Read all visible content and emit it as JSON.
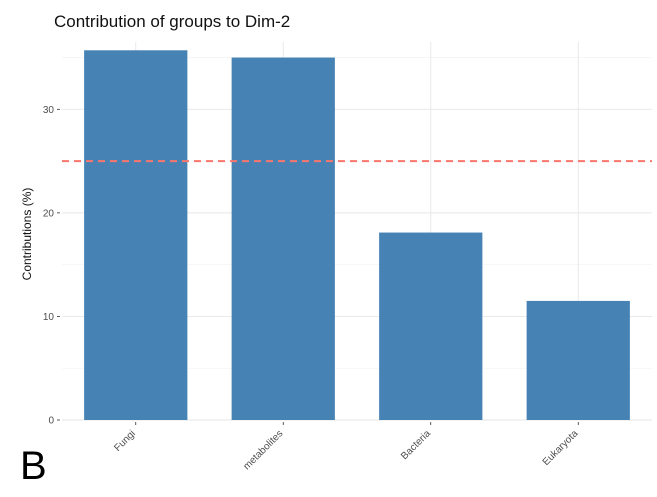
{
  "panel_label": "B",
  "chart_data": {
    "type": "bar",
    "title": "Contribution of groups to Dim-2",
    "xlabel": "",
    "ylabel": "Contributions (%)",
    "categories": [
      "Fungi",
      "metabolites",
      "Bacteria",
      "Eukaryota"
    ],
    "values": [
      35.7,
      35.0,
      18.1,
      11.5
    ],
    "ylim": [
      0,
      36.5
    ],
    "yticks": [
      0,
      10,
      20,
      30
    ],
    "reference_line": {
      "value": 25,
      "style": "dashed",
      "color": "#f8766d"
    },
    "bar_color": "#4682b4",
    "grid": true,
    "legend": "none"
  }
}
